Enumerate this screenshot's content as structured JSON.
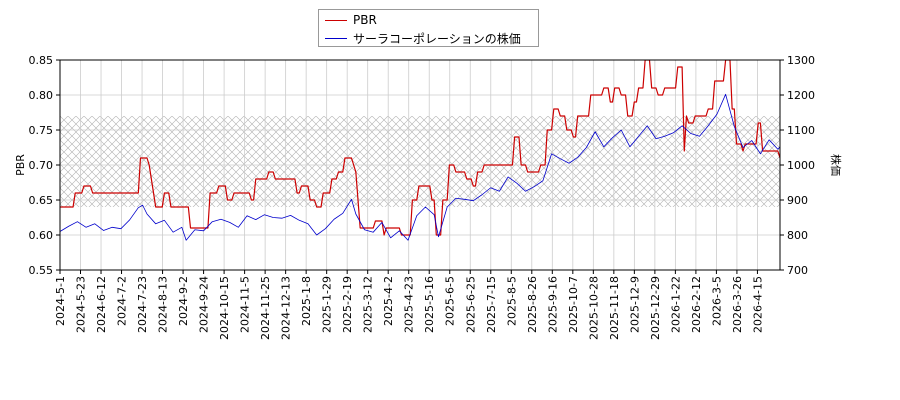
{
  "chart_data": {
    "type": "line",
    "xlabel": "",
    "ylabel_left": "PBR",
    "ylabel_right": "株価",
    "ylim_left": [
      0.55,
      0.85
    ],
    "ylim_right": [
      700,
      1300
    ],
    "yticks_left": [
      "0.55",
      "0.60",
      "0.65",
      "0.70",
      "0.75",
      "0.80",
      "0.85"
    ],
    "yticks_right": [
      "700",
      "800",
      "900",
      "1000",
      "1100",
      "1200",
      "1300"
    ],
    "x_tick_labels": [
      "2024-5-1",
      "2024-5-23",
      "2024-6-12",
      "2024-7-2",
      "2024-7-23",
      "2024-8-13",
      "2024-9-2",
      "2024-9-24",
      "2024-10-15",
      "2024-11-5",
      "2024-11-25",
      "2024-12-13",
      "2025-1-8",
      "2025-1-29",
      "2025-2-19",
      "2025-3-12",
      "2025-4-2",
      "2025-4-23",
      "2025-5-16",
      "2025-6-5",
      "2025-6-25",
      "2025-7-15",
      "2025-8-5",
      "2025-8-26",
      "2025-9-16",
      "2025-10-7",
      "2025-10-28",
      "2025-11-18",
      "2025-12-9",
      "2025-12-29",
      "2026-1-22",
      "2026-2-12",
      "2026-3-5",
      "2026-3-26",
      "2026-4-15"
    ],
    "hatched_band_left": [
      0.64,
      0.77
    ],
    "grid": true,
    "legend_position": "top-center",
    "series": [
      {
        "name": "PBR",
        "axis": "left",
        "color": "#cc0000",
        "points": [
          [
            0,
            0.64
          ],
          [
            6,
            0.64
          ],
          [
            7,
            0.66
          ],
          [
            10,
            0.66
          ],
          [
            11,
            0.67
          ],
          [
            14,
            0.67
          ],
          [
            15,
            0.66
          ],
          [
            36,
            0.66
          ],
          [
            37,
            0.71
          ],
          [
            40,
            0.71
          ],
          [
            41,
            0.7
          ],
          [
            44,
            0.64
          ],
          [
            47,
            0.64
          ],
          [
            48,
            0.66
          ],
          [
            50,
            0.66
          ],
          [
            51,
            0.64
          ],
          [
            59,
            0.64
          ],
          [
            60,
            0.61
          ],
          [
            68,
            0.61
          ],
          [
            69,
            0.66
          ],
          [
            72,
            0.66
          ],
          [
            73,
            0.67
          ],
          [
            76,
            0.67
          ],
          [
            77,
            0.65
          ],
          [
            79,
            0.65
          ],
          [
            80,
            0.66
          ],
          [
            87,
            0.66
          ],
          [
            88,
            0.65
          ],
          [
            89,
            0.65
          ],
          [
            90,
            0.68
          ],
          [
            95,
            0.68
          ],
          [
            96,
            0.69
          ],
          [
            98,
            0.69
          ],
          [
            99,
            0.68
          ],
          [
            108,
            0.68
          ],
          [
            109,
            0.66
          ],
          [
            110,
            0.66
          ],
          [
            111,
            0.67
          ],
          [
            114,
            0.67
          ],
          [
            115,
            0.65
          ],
          [
            117,
            0.65
          ],
          [
            118,
            0.64
          ],
          [
            120,
            0.64
          ],
          [
            121,
            0.66
          ],
          [
            124,
            0.66
          ],
          [
            125,
            0.68
          ],
          [
            127,
            0.68
          ],
          [
            128,
            0.69
          ],
          [
            130,
            0.69
          ],
          [
            131,
            0.71
          ],
          [
            134,
            0.71
          ],
          [
            135,
            0.7
          ],
          [
            136,
            0.69
          ],
          [
            138,
            0.61
          ],
          [
            144,
            0.61
          ],
          [
            145,
            0.62
          ],
          [
            148,
            0.62
          ],
          [
            149,
            0.6
          ],
          [
            150,
            0.61
          ],
          [
            156,
            0.61
          ],
          [
            157,
            0.6
          ],
          [
            161,
            0.6
          ],
          [
            162,
            0.65
          ],
          [
            164,
            0.65
          ],
          [
            165,
            0.67
          ],
          [
            170,
            0.67
          ],
          [
            171,
            0.65
          ],
          [
            172,
            0.65
          ],
          [
            173,
            0.6
          ],
          [
            175,
            0.6
          ],
          [
            176,
            0.65
          ],
          [
            178,
            0.65
          ],
          [
            179,
            0.7
          ],
          [
            181,
            0.7
          ],
          [
            182,
            0.69
          ],
          [
            186,
            0.69
          ],
          [
            187,
            0.68
          ],
          [
            189,
            0.68
          ],
          [
            190,
            0.67
          ],
          [
            191,
            0.67
          ],
          [
            192,
            0.69
          ],
          [
            194,
            0.69
          ],
          [
            195,
            0.7
          ],
          [
            208,
            0.7
          ],
          [
            209,
            0.74
          ],
          [
            211,
            0.74
          ],
          [
            212,
            0.7
          ],
          [
            214,
            0.7
          ],
          [
            215,
            0.69
          ],
          [
            220,
            0.69
          ],
          [
            221,
            0.7
          ],
          [
            223,
            0.7
          ],
          [
            224,
            0.75
          ],
          [
            226,
            0.75
          ],
          [
            227,
            0.78
          ],
          [
            229,
            0.78
          ],
          [
            230,
            0.77
          ],
          [
            232,
            0.77
          ],
          [
            233,
            0.75
          ],
          [
            235,
            0.75
          ],
          [
            236,
            0.74
          ],
          [
            237,
            0.74
          ],
          [
            238,
            0.77
          ],
          [
            243,
            0.77
          ],
          [
            244,
            0.8
          ],
          [
            249,
            0.8
          ],
          [
            250,
            0.81
          ],
          [
            252,
            0.81
          ],
          [
            253,
            0.79
          ],
          [
            254,
            0.79
          ],
          [
            255,
            0.81
          ],
          [
            257,
            0.81
          ],
          [
            258,
            0.8
          ],
          [
            260,
            0.8
          ],
          [
            261,
            0.77
          ],
          [
            263,
            0.77
          ],
          [
            264,
            0.79
          ],
          [
            265,
            0.79
          ],
          [
            266,
            0.81
          ],
          [
            268,
            0.81
          ],
          [
            269,
            0.85
          ],
          [
            271,
            0.85
          ],
          [
            272,
            0.81
          ],
          [
            274,
            0.81
          ],
          [
            275,
            0.8
          ],
          [
            277,
            0.8
          ],
          [
            278,
            0.81
          ],
          [
            283,
            0.81
          ],
          [
            284,
            0.84
          ],
          [
            286,
            0.84
          ],
          [
            287,
            0.72
          ],
          [
            288,
            0.77
          ],
          [
            289,
            0.76
          ],
          [
            291,
            0.76
          ],
          [
            292,
            0.77
          ],
          [
            297,
            0.77
          ],
          [
            298,
            0.78
          ],
          [
            300,
            0.78
          ],
          [
            301,
            0.82
          ],
          [
            305,
            0.82
          ],
          [
            306,
            0.85
          ],
          [
            308,
            0.85
          ],
          [
            309,
            0.78
          ],
          [
            310,
            0.78
          ],
          [
            311,
            0.73
          ],
          [
            313,
            0.73
          ],
          [
            314,
            0.72
          ],
          [
            315,
            0.73
          ],
          [
            320,
            0.73
          ],
          [
            321,
            0.76
          ],
          [
            322,
            0.76
          ],
          [
            323,
            0.72
          ],
          [
            330,
            0.72
          ],
          [
            331,
            0.71
          ]
        ]
      },
      {
        "name": "サーラコーポレーションの株価",
        "axis": "right",
        "color": "#0000cc",
        "points": [
          [
            0,
            810
          ],
          [
            4,
            825
          ],
          [
            8,
            838
          ],
          [
            12,
            822
          ],
          [
            16,
            832
          ],
          [
            20,
            813
          ],
          [
            24,
            822
          ],
          [
            28,
            818
          ],
          [
            32,
            843
          ],
          [
            36,
            878
          ],
          [
            38,
            885
          ],
          [
            40,
            860
          ],
          [
            44,
            832
          ],
          [
            48,
            842
          ],
          [
            52,
            808
          ],
          [
            56,
            822
          ],
          [
            58,
            785
          ],
          [
            62,
            815
          ],
          [
            66,
            812
          ],
          [
            70,
            838
          ],
          [
            74,
            845
          ],
          [
            78,
            836
          ],
          [
            82,
            822
          ],
          [
            86,
            855
          ],
          [
            90,
            844
          ],
          [
            94,
            858
          ],
          [
            98,
            850
          ],
          [
            102,
            848
          ],
          [
            106,
            856
          ],
          [
            110,
            842
          ],
          [
            114,
            832
          ],
          [
            118,
            800
          ],
          [
            122,
            818
          ],
          [
            126,
            845
          ],
          [
            130,
            862
          ],
          [
            134,
            902
          ],
          [
            136,
            860
          ],
          [
            140,
            815
          ],
          [
            144,
            808
          ],
          [
            148,
            836
          ],
          [
            152,
            792
          ],
          [
            156,
            812
          ],
          [
            160,
            785
          ],
          [
            164,
            855
          ],
          [
            168,
            880
          ],
          [
            172,
            858
          ],
          [
            174,
            795
          ],
          [
            178,
            880
          ],
          [
            182,
            905
          ],
          [
            186,
            902
          ],
          [
            190,
            898
          ],
          [
            194,
            915
          ],
          [
            198,
            935
          ],
          [
            202,
            925
          ],
          [
            206,
            966
          ],
          [
            210,
            948
          ],
          [
            214,
            925
          ],
          [
            218,
            938
          ],
          [
            222,
            955
          ],
          [
            226,
            1032
          ],
          [
            230,
            1018
          ],
          [
            234,
            1005
          ],
          [
            238,
            1022
          ],
          [
            242,
            1050
          ],
          [
            246,
            1095
          ],
          [
            250,
            1052
          ],
          [
            254,
            1078
          ],
          [
            258,
            1100
          ],
          [
            262,
            1052
          ],
          [
            266,
            1082
          ],
          [
            270,
            1112
          ],
          [
            274,
            1075
          ],
          [
            278,
            1082
          ],
          [
            282,
            1092
          ],
          [
            286,
            1112
          ],
          [
            290,
            1090
          ],
          [
            294,
            1082
          ],
          [
            298,
            1112
          ],
          [
            302,
            1145
          ],
          [
            306,
            1202
          ],
          [
            310,
            1110
          ],
          [
            314,
            1050
          ],
          [
            318,
            1070
          ],
          [
            322,
            1032
          ],
          [
            326,
            1072
          ],
          [
            330,
            1045
          ],
          [
            331,
            1052
          ]
        ]
      }
    ]
  }
}
